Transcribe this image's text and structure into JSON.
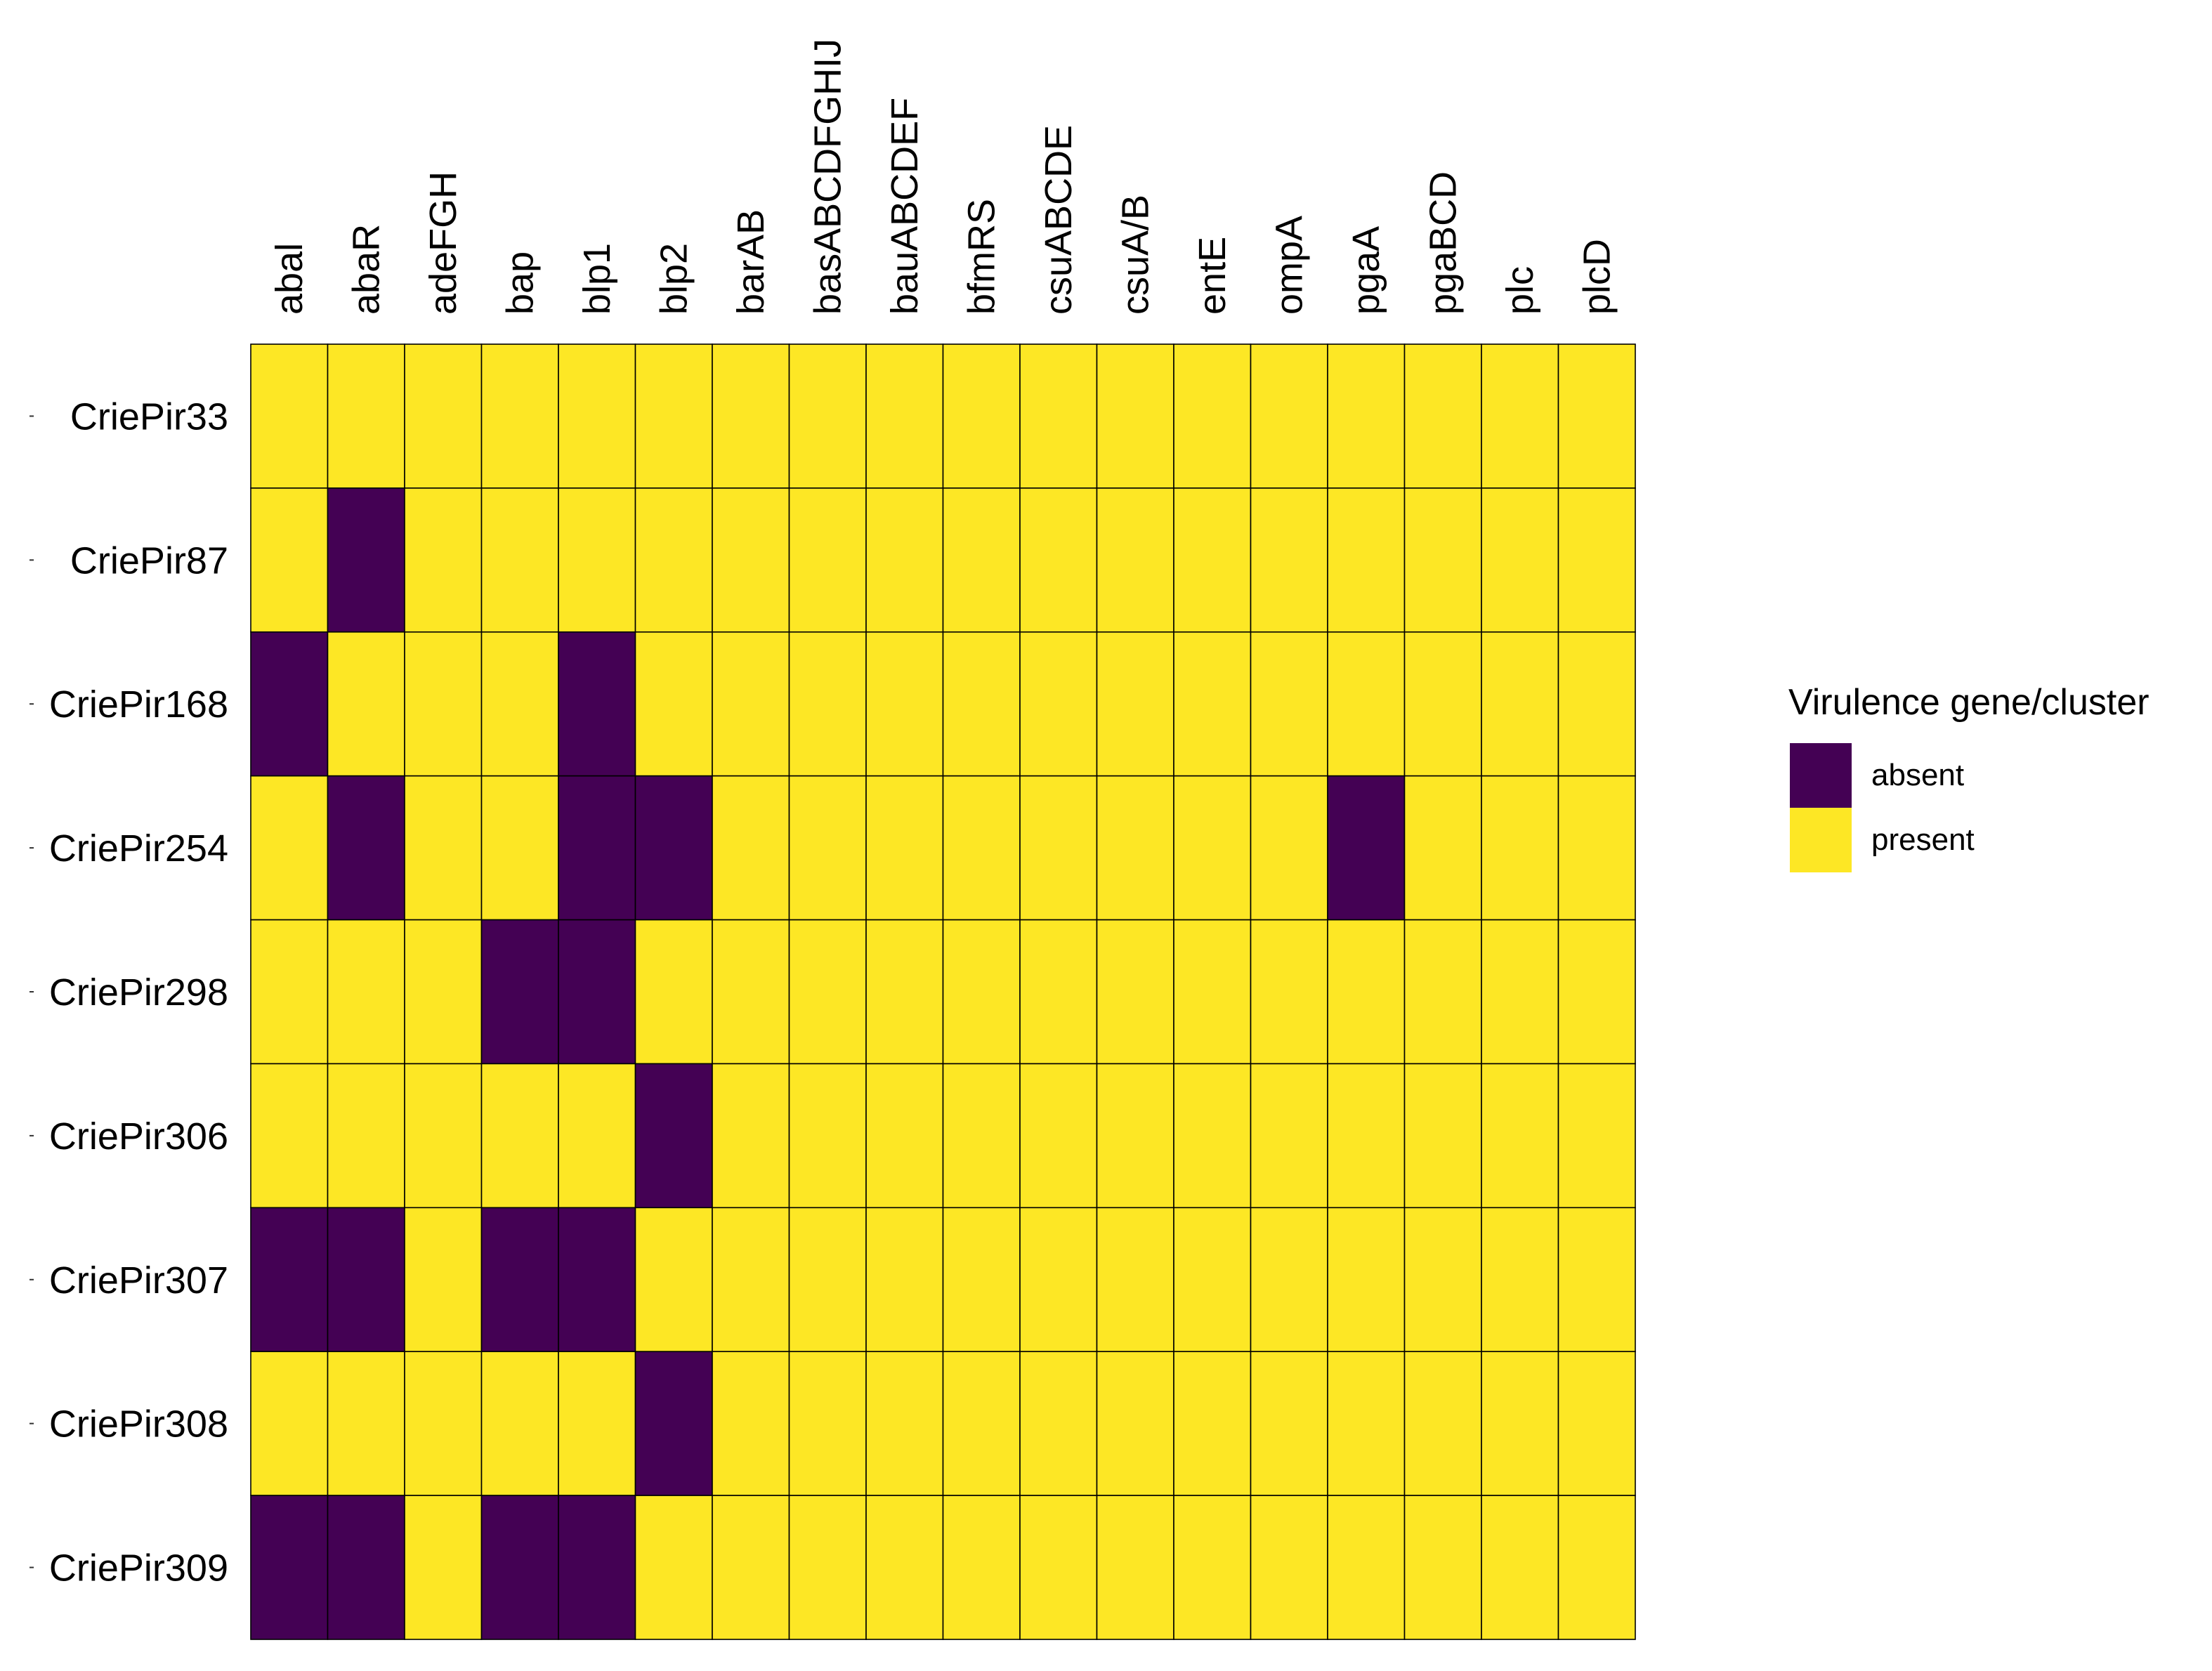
{
  "chart_data": {
    "type": "heatmap",
    "title": "",
    "xlabel": "",
    "ylabel": "",
    "columns": [
      "abal",
      "abaR",
      "adeFGH",
      "bap",
      "blp1",
      "blp2",
      "barAB",
      "basABCDFGHIJ",
      "bauABCDEF",
      "bfmRS",
      "csuABCDE",
      "csuA/B",
      "entE",
      "ompA",
      "pgaA",
      "pgaBCD",
      "plc",
      "plcD"
    ],
    "rows": [
      "CriePir33",
      "CriePir87",
      "CriePir168",
      "CriePir254",
      "CriePir298",
      "CriePir306",
      "CriePir307",
      "CriePir308",
      "CriePir309"
    ],
    "values": [
      [
        1,
        1,
        1,
        1,
        1,
        1,
        1,
        1,
        1,
        1,
        1,
        1,
        1,
        1,
        1,
        1,
        1,
        1
      ],
      [
        1,
        0,
        1,
        1,
        1,
        1,
        1,
        1,
        1,
        1,
        1,
        1,
        1,
        1,
        1,
        1,
        1,
        1
      ],
      [
        0,
        1,
        1,
        1,
        0,
        1,
        1,
        1,
        1,
        1,
        1,
        1,
        1,
        1,
        1,
        1,
        1,
        1
      ],
      [
        1,
        0,
        1,
        1,
        0,
        0,
        1,
        1,
        1,
        1,
        1,
        1,
        1,
        1,
        0,
        1,
        1,
        1
      ],
      [
        1,
        1,
        1,
        0,
        0,
        1,
        1,
        1,
        1,
        1,
        1,
        1,
        1,
        1,
        1,
        1,
        1,
        1
      ],
      [
        1,
        1,
        1,
        1,
        1,
        0,
        1,
        1,
        1,
        1,
        1,
        1,
        1,
        1,
        1,
        1,
        1,
        1
      ],
      [
        0,
        0,
        1,
        0,
        0,
        1,
        1,
        1,
        1,
        1,
        1,
        1,
        1,
        1,
        1,
        1,
        1,
        1
      ],
      [
        1,
        1,
        1,
        1,
        1,
        0,
        1,
        1,
        1,
        1,
        1,
        1,
        1,
        1,
        1,
        1,
        1,
        1
      ],
      [
        0,
        0,
        1,
        0,
        0,
        1,
        1,
        1,
        1,
        1,
        1,
        1,
        1,
        1,
        1,
        1,
        1,
        1
      ]
    ],
    "value_encoding": {
      "0": "absent",
      "1": "present"
    },
    "legend": {
      "title": "Virulence gene/cluster",
      "position": "right",
      "entries": [
        {
          "label": "absent",
          "color": "#440154"
        },
        {
          "label": "present",
          "color": "#FDE725"
        }
      ]
    }
  }
}
